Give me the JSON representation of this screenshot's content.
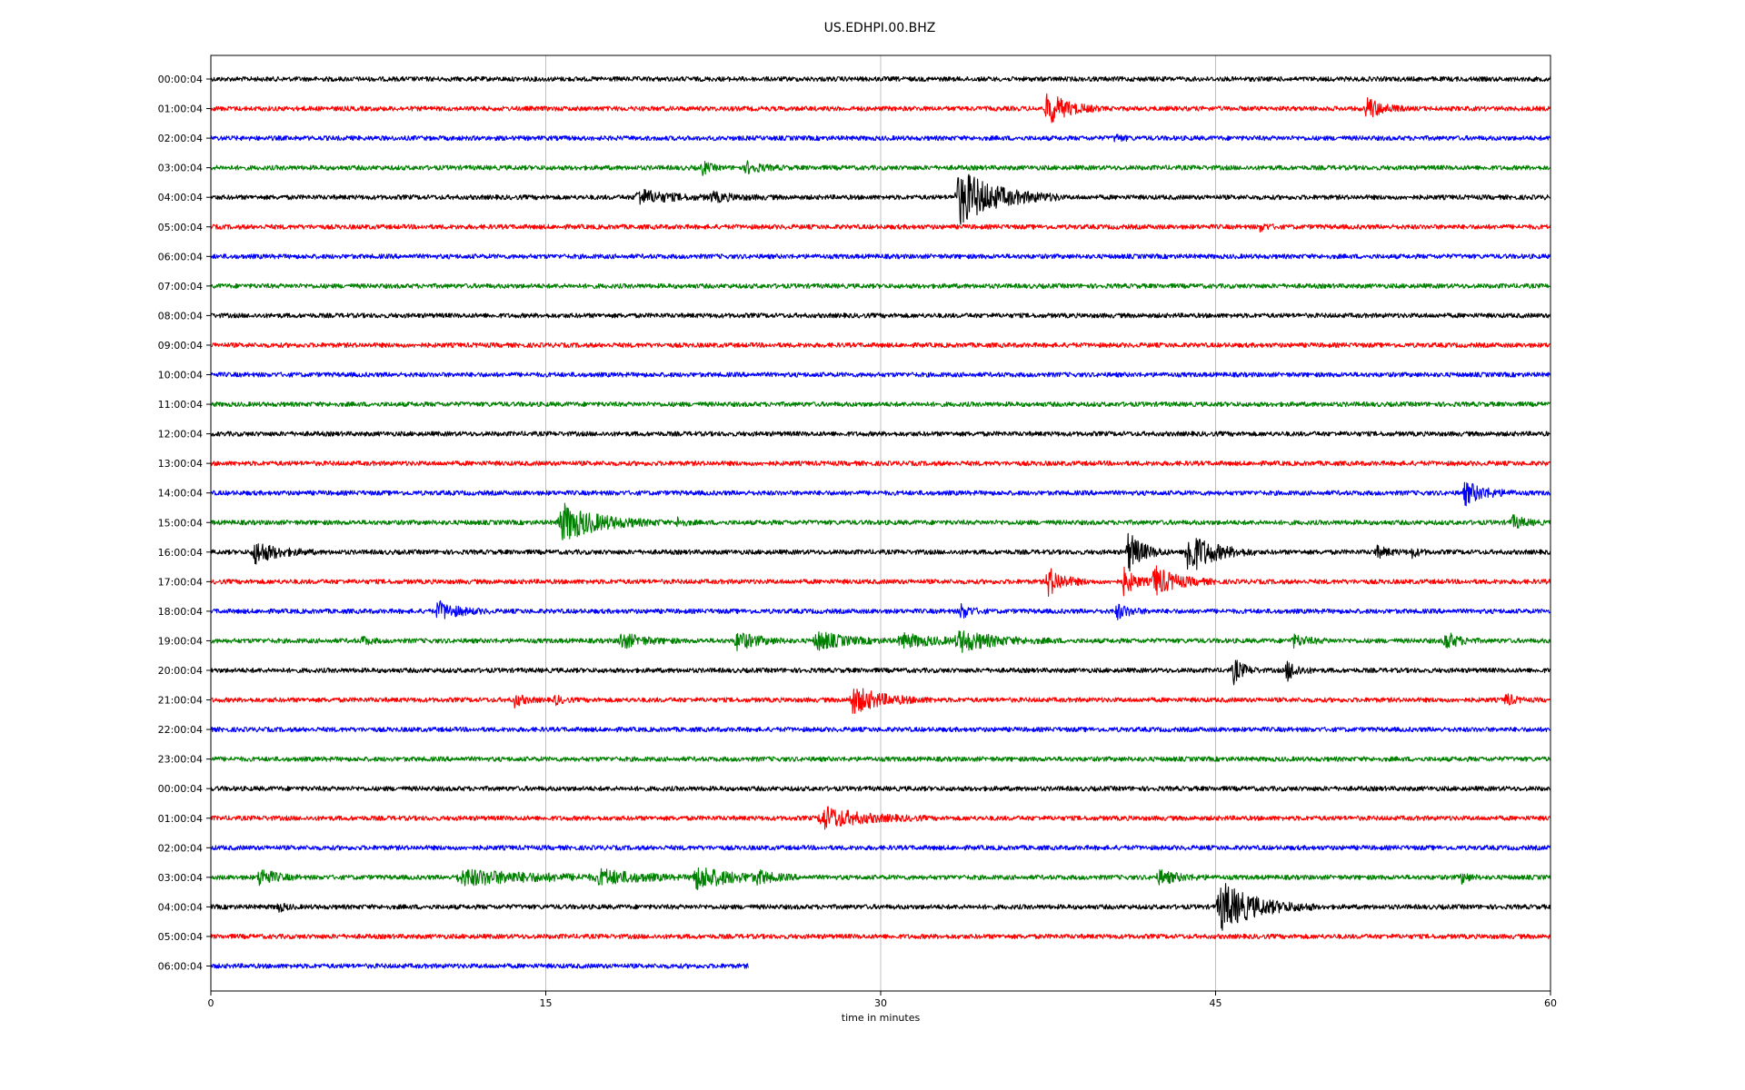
{
  "chart_data": {
    "type": "line",
    "title": "US.EDHPI.00.BHZ",
    "xlabel": "time in minutes",
    "xlim": [
      0,
      60
    ],
    "xticks": [
      "0",
      "15",
      "30",
      "45",
      "60"
    ],
    "xtick_values": [
      0,
      15,
      30,
      45,
      60
    ],
    "grid_vertical": true,
    "colors": [
      "#000000",
      "#ff0000",
      "#0000ff",
      "#008000"
    ],
    "rows": [
      {
        "label": "00:00:04",
        "end_min": 60,
        "events": []
      },
      {
        "label": "01:00:04",
        "end_min": 60,
        "events": [
          {
            "t": 37.5,
            "amp": 18,
            "w": 0.8
          },
          {
            "t": 51.8,
            "amp": 12,
            "w": 0.6
          }
        ]
      },
      {
        "label": "02:00:04",
        "end_min": 60,
        "events": [
          {
            "t": 40.5,
            "amp": 4,
            "w": 0.3
          }
        ]
      },
      {
        "label": "03:00:04",
        "end_min": 60,
        "events": [
          {
            "t": 22.0,
            "amp": 8,
            "w": 0.3
          },
          {
            "t": 24.0,
            "amp": 6,
            "w": 0.6
          }
        ]
      },
      {
        "label": "04:00:04",
        "end_min": 60,
        "events": [
          {
            "t": 19.2,
            "amp": 8,
            "w": 1.2
          },
          {
            "t": 22.5,
            "amp": 4,
            "w": 1.0
          },
          {
            "t": 33.6,
            "amp": 30,
            "w": 1.5
          }
        ]
      },
      {
        "label": "05:00:04",
        "end_min": 60,
        "events": [
          {
            "t": 47.0,
            "amp": 4,
            "w": 0.3
          }
        ]
      },
      {
        "label": "06:00:04",
        "end_min": 60,
        "events": []
      },
      {
        "label": "07:00:04",
        "end_min": 60,
        "events": []
      },
      {
        "label": "08:00:04",
        "end_min": 60,
        "events": []
      },
      {
        "label": "09:00:04",
        "end_min": 60,
        "events": []
      },
      {
        "label": "10:00:04",
        "end_min": 60,
        "events": []
      },
      {
        "label": "11:00:04",
        "end_min": 60,
        "events": []
      },
      {
        "label": "12:00:04",
        "end_min": 60,
        "events": []
      },
      {
        "label": "13:00:04",
        "end_min": 60,
        "events": []
      },
      {
        "label": "14:00:04",
        "end_min": 60,
        "events": [
          {
            "t": 56.2,
            "amp": 12,
            "w": 0.8
          }
        ]
      },
      {
        "label": "15:00:04",
        "end_min": 60,
        "events": [
          {
            "t": 15.8,
            "amp": 20,
            "w": 1.5
          },
          {
            "t": 20.9,
            "amp": 5,
            "w": 0.3
          },
          {
            "t": 58.3,
            "amp": 7,
            "w": 0.5
          }
        ]
      },
      {
        "label": "16:00:04",
        "end_min": 60,
        "events": [
          {
            "t": 2.0,
            "amp": 12,
            "w": 0.9
          },
          {
            "t": 41.1,
            "amp": 22,
            "w": 0.6
          },
          {
            "t": 43.8,
            "amp": 24,
            "w": 1.0
          },
          {
            "t": 52.2,
            "amp": 6,
            "w": 0.5
          },
          {
            "t": 53.8,
            "amp": 5,
            "w": 0.3
          }
        ]
      },
      {
        "label": "17:00:04",
        "end_min": 60,
        "events": [
          {
            "t": 37.5,
            "amp": 16,
            "w": 0.6
          },
          {
            "t": 40.9,
            "amp": 14,
            "w": 0.5
          },
          {
            "t": 42.3,
            "amp": 16,
            "w": 0.9
          }
        ]
      },
      {
        "label": "18:00:04",
        "end_min": 60,
        "events": [
          {
            "t": 10.2,
            "amp": 10,
            "w": 0.8
          },
          {
            "t": 33.6,
            "amp": 8,
            "w": 0.4
          },
          {
            "t": 40.6,
            "amp": 8,
            "w": 0.5
          }
        ]
      },
      {
        "label": "19:00:04",
        "end_min": 60,
        "events": [
          {
            "t": 6.8,
            "amp": 5,
            "w": 0.3
          },
          {
            "t": 18.4,
            "amp": 8,
            "w": 0.9
          },
          {
            "t": 23.6,
            "amp": 10,
            "w": 0.8
          },
          {
            "t": 27.2,
            "amp": 10,
            "w": 1.1
          },
          {
            "t": 31.0,
            "amp": 7,
            "w": 1.4
          },
          {
            "t": 33.6,
            "amp": 10,
            "w": 1.5
          },
          {
            "t": 48.5,
            "amp": 6,
            "w": 0.6
          },
          {
            "t": 55.3,
            "amp": 10,
            "w": 0.5
          }
        ]
      },
      {
        "label": "20:00:04",
        "end_min": 60,
        "events": [
          {
            "t": 45.8,
            "amp": 14,
            "w": 0.4
          },
          {
            "t": 48.2,
            "amp": 12,
            "w": 0.4
          }
        ]
      },
      {
        "label": "21:00:04",
        "end_min": 60,
        "events": [
          {
            "t": 13.6,
            "amp": 7,
            "w": 0.4
          },
          {
            "t": 15.4,
            "amp": 5,
            "w": 0.3
          },
          {
            "t": 28.8,
            "amp": 14,
            "w": 1.2
          },
          {
            "t": 58.0,
            "amp": 8,
            "w": 0.3
          }
        ]
      },
      {
        "label": "22:00:04",
        "end_min": 60,
        "events": []
      },
      {
        "label": "23:00:04",
        "end_min": 60,
        "events": []
      },
      {
        "label": "00:00:04",
        "end_min": 60,
        "events": []
      },
      {
        "label": "01:00:04",
        "end_min": 60,
        "events": [
          {
            "t": 27.5,
            "amp": 12,
            "w": 1.5
          }
        ]
      },
      {
        "label": "02:00:04",
        "end_min": 60,
        "events": []
      },
      {
        "label": "03:00:04",
        "end_min": 60,
        "events": [
          {
            "t": 2.2,
            "amp": 10,
            "w": 0.6
          },
          {
            "t": 11.5,
            "amp": 8,
            "w": 3.0
          },
          {
            "t": 17.5,
            "amp": 7,
            "w": 1.5
          },
          {
            "t": 21.8,
            "amp": 12,
            "w": 1.5
          },
          {
            "t": 24.5,
            "amp": 6,
            "w": 0.5
          },
          {
            "t": 42.5,
            "amp": 7,
            "w": 0.8
          },
          {
            "t": 56.0,
            "amp": 6,
            "w": 0.3
          }
        ]
      },
      {
        "label": "04:00:04",
        "end_min": 60,
        "events": [
          {
            "t": 3.0,
            "amp": 5,
            "w": 0.3
          },
          {
            "t": 45.3,
            "amp": 26,
            "w": 1.4
          }
        ]
      },
      {
        "label": "05:00:04",
        "end_min": 60,
        "events": []
      },
      {
        "label": "06:00:04",
        "end_min": 24.1,
        "events": []
      }
    ]
  }
}
